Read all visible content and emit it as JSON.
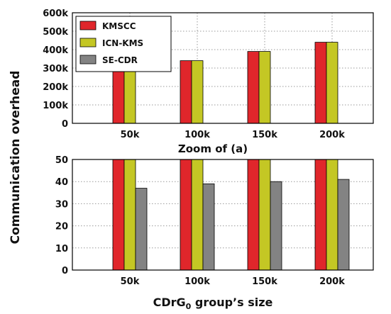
{
  "chart_data": [
    {
      "type": "bar",
      "categories": [
        "50k",
        "100k",
        "150k",
        "200k"
      ],
      "series": [
        {
          "name": "KMSCC",
          "values": [
            290000,
            340000,
            390000,
            440000
          ],
          "color": "#e0262b"
        },
        {
          "name": "ICN-KMS",
          "values": [
            290000,
            340000,
            390000,
            440000
          ],
          "color": "#c4c724"
        },
        {
          "name": "SE-CDR",
          "values": [
            37,
            39,
            40,
            41
          ],
          "color": "#838383"
        }
      ],
      "yticks": [
        "0",
        "100k",
        "200k",
        "300k",
        "400k",
        "500k",
        "600k"
      ],
      "ylim": [
        0,
        600000
      ],
      "xlabel": "Zoom of (a)",
      "grid": true,
      "legend": "top-left"
    },
    {
      "type": "bar",
      "categories": [
        "50k",
        "100k",
        "150k",
        "200k"
      ],
      "series": [
        {
          "name": "KMSCC",
          "values": [
            290000,
            340000,
            390000,
            440000
          ],
          "color": "#e0262b"
        },
        {
          "name": "ICN-KMS",
          "values": [
            290000,
            340000,
            390000,
            440000
          ],
          "color": "#c4c724"
        },
        {
          "name": "SE-CDR",
          "values": [
            37,
            39,
            40,
            41
          ],
          "color": "#838383"
        }
      ],
      "yticks": [
        "0",
        "10",
        "20",
        "30",
        "40",
        "50"
      ],
      "ylim": [
        0,
        50
      ],
      "xlabel": "",
      "grid": true
    }
  ],
  "shared_ylabel": "Communication overhead",
  "shared_xlabel": {
    "prefix": "CDrG",
    "subscript": "0",
    "suffix": " group’s size"
  }
}
